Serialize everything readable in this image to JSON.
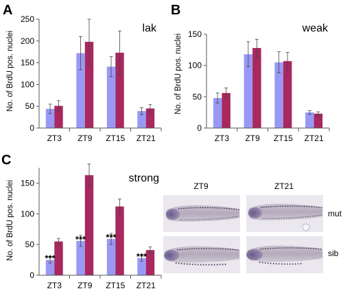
{
  "colors": {
    "series1": "#9999f5",
    "series2": "#a8285f",
    "axis": "#555555",
    "fish_bg": "#e9e6ec"
  },
  "chart_data": [
    {
      "letter": "A",
      "type": "bar",
      "title": "lak",
      "xlabel": "",
      "ylabel": "No. of BrdU pos. nuclei",
      "categories": [
        "ZT3",
        "ZT9",
        "ZT15",
        "ZT21"
      ],
      "ylim": [
        0,
        250
      ],
      "yticks": [
        0,
        50,
        100,
        150,
        200,
        250
      ],
      "grid": false,
      "series": [
        {
          "values": [
            44,
            172,
            141,
            39
          ],
          "errors": [
            11,
            38,
            23,
            8
          ]
        },
        {
          "values": [
            51,
            198,
            173,
            45
          ],
          "errors": [
            12,
            52,
            50,
            9
          ]
        }
      ],
      "annotations": []
    },
    {
      "letter": "B",
      "type": "bar",
      "title": "weak",
      "xlabel": "",
      "ylabel": "No. of BrdU pos. nuclei",
      "categories": [
        "ZT3",
        "ZT9",
        "ZT15",
        "ZT21"
      ],
      "ylim": [
        0,
        150
      ],
      "yticks": [
        0,
        50,
        100,
        150
      ],
      "grid": false,
      "series": [
        {
          "values": [
            48,
            118,
            105,
            25
          ],
          "errors": [
            8,
            20,
            17,
            3
          ]
        },
        {
          "values": [
            56,
            128,
            107,
            23
          ],
          "errors": [
            8,
            14,
            14,
            3
          ]
        }
      ],
      "annotations": []
    },
    {
      "letter": "C",
      "type": "bar",
      "title": "strong",
      "xlabel": "",
      "ylabel": "No. of BrdU pos. nuclei",
      "categories": [
        "ZT3",
        "ZT9",
        "ZT15",
        "ZT21"
      ],
      "ylim": [
        0,
        175
      ],
      "yticks": [
        0,
        50,
        100,
        150
      ],
      "grid": false,
      "series": [
        {
          "values": [
            25,
            56,
            59,
            28
          ],
          "errors": [
            5,
            9,
            9,
            5
          ]
        },
        {
          "values": [
            55,
            163,
            112,
            41
          ],
          "errors": [
            5,
            18,
            12,
            5
          ]
        }
      ],
      "annotations": [
        "***",
        "***",
        "***",
        "***"
      ]
    }
  ],
  "photos": {
    "columns": [
      "ZT9",
      "ZT21"
    ],
    "rows": [
      "mut",
      "sib"
    ],
    "icon": "zebrafish-larva-photo"
  }
}
